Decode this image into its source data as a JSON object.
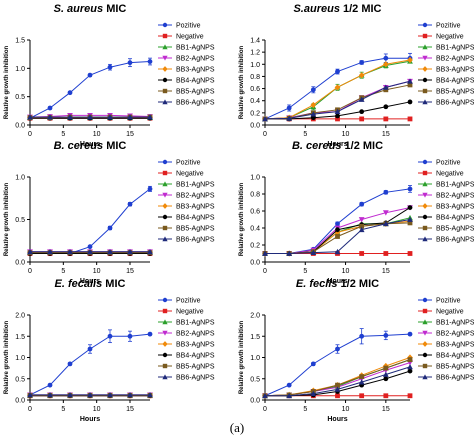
{
  "figure_caption": "(a)",
  "legend_entries": [
    "Pozitive",
    "Negative",
    "BB1-AgNPS",
    "BB2-AgNPS",
    "BB3-AgNPS",
    "BB4-AgNPS",
    "BB5-AgNPS",
    "BB6-AgNPS"
  ],
  "series_styles": [
    {
      "color": "#1f3fd0",
      "marker": "circle"
    },
    {
      "color": "#e02020",
      "marker": "square"
    },
    {
      "color": "#2ca02c",
      "marker": "triangle"
    },
    {
      "color": "#c02bd0",
      "marker": "triangle-down"
    },
    {
      "color": "#f08a0a",
      "marker": "diamond"
    },
    {
      "color": "#000000",
      "marker": "circle"
    },
    {
      "color": "#7a5a1e",
      "marker": "square"
    },
    {
      "color": "#1f2a7a",
      "marker": "triangle"
    }
  ],
  "chart_data": [
    {
      "type": "line",
      "title": "S. aureus MIC",
      "title_italic": "S. aureus",
      "title_rest": " MIC",
      "xlabel": "Hours",
      "ylabel": "Relative growth inhibition",
      "xlim": [
        0,
        18
      ],
      "ylim": [
        0,
        1.5
      ],
      "xticks": [
        0,
        5,
        10,
        15
      ],
      "yticks": [
        0.0,
        0.5,
        1.0,
        1.5
      ],
      "ytick_labels": [
        "0.0",
        "0.5",
        "1.0",
        "1.5"
      ],
      "x": [
        0,
        3,
        6,
        9,
        12,
        15,
        18
      ],
      "legend_names": [
        "Pozitive",
        "Negative",
        "BB1-AgNPS",
        "BB2-AgNPS",
        "BB3-AgNPS",
        "BB4-AgNPS",
        "BB5-AgNPS",
        "BB6-AgNPS"
      ],
      "series": [
        {
          "name": "Pozitive",
          "values": [
            0.12,
            0.3,
            0.57,
            0.88,
            1.02,
            1.1,
            1.12
          ],
          "error": [
            0,
            0.02,
            0.02,
            0.02,
            0.05,
            0.07,
            0.06
          ]
        },
        {
          "name": "Negative",
          "values": [
            0.12,
            0.12,
            0.12,
            0.12,
            0.12,
            0.12,
            0.12
          ]
        },
        {
          "name": "BB1-AgNPS",
          "values": [
            0.13,
            0.13,
            0.13,
            0.13,
            0.13,
            0.13,
            0.13
          ]
        },
        {
          "name": "BB2-AgNPS",
          "values": [
            0.14,
            0.15,
            0.17,
            0.17,
            0.17,
            0.16,
            0.15
          ]
        },
        {
          "name": "BB3-AgNPS",
          "values": [
            0.13,
            0.13,
            0.13,
            0.13,
            0.13,
            0.13,
            0.13
          ]
        },
        {
          "name": "BB4-AgNPS",
          "values": [
            0.12,
            0.12,
            0.12,
            0.12,
            0.12,
            0.12,
            0.12
          ]
        },
        {
          "name": "BB5-AgNPS",
          "values": [
            0.13,
            0.13,
            0.14,
            0.14,
            0.14,
            0.14,
            0.14
          ]
        },
        {
          "name": "BB6-AgNPS",
          "values": [
            0.14,
            0.14,
            0.14,
            0.14,
            0.14,
            0.14,
            0.14
          ]
        }
      ]
    },
    {
      "type": "line",
      "title": "S.aureus 1/2 MIC",
      "title_italic": "S.aureus",
      "title_rest": " 1/2 MIC",
      "xlabel": "Hours",
      "ylabel": "Relative growth inhibition",
      "xlim": [
        0,
        18
      ],
      "ylim": [
        0,
        1.4
      ],
      "xticks": [
        0,
        5,
        10,
        15
      ],
      "yticks": [
        0.0,
        0.2,
        0.4,
        0.6,
        0.8,
        1.0,
        1.2,
        1.4
      ],
      "ytick_labels": [
        "0.0",
        "0.2",
        "0.4",
        "0.6",
        "0.8",
        "1.0",
        "1.2",
        "1.4"
      ],
      "x": [
        0,
        3,
        6,
        9,
        12,
        15,
        18
      ],
      "legend_names": [
        "Pozitive",
        "Negative",
        "BB1-AgNPS",
        "BB2-AgNPS",
        "BB3-AgNPS",
        "BB4-AgNPS",
        "BB5-AgNPS",
        "BB6-AgNPS"
      ],
      "series": [
        {
          "name": "Pozitive",
          "values": [
            0.1,
            0.28,
            0.58,
            0.88,
            1.03,
            1.1,
            1.1
          ],
          "error": [
            0,
            0.05,
            0.05,
            0.04,
            0.03,
            0.07,
            0.08
          ]
        },
        {
          "name": "Negative",
          "values": [
            0.1,
            0.1,
            0.1,
            0.1,
            0.1,
            0.1,
            0.1
          ]
        },
        {
          "name": "BB1-AgNPS",
          "values": [
            0.1,
            0.12,
            0.3,
            0.62,
            0.82,
            0.98,
            1.05
          ],
          "error": [
            0,
            0.02,
            0.05,
            0.05,
            0.05,
            0.04,
            0.03
          ]
        },
        {
          "name": "BB2-AgNPS",
          "values": [
            0.1,
            0.12,
            0.2,
            0.22,
            0.45,
            0.62,
            0.72
          ]
        },
        {
          "name": "BB3-AgNPS",
          "values": [
            0.1,
            0.12,
            0.33,
            0.62,
            0.82,
            1.0,
            1.07
          ]
        },
        {
          "name": "BB4-AgNPS",
          "values": [
            0.1,
            0.1,
            0.12,
            0.15,
            0.22,
            0.3,
            0.38
          ]
        },
        {
          "name": "BB5-AgNPS",
          "values": [
            0.1,
            0.11,
            0.2,
            0.25,
            0.45,
            0.58,
            0.66
          ]
        },
        {
          "name": "BB6-AgNPS",
          "values": [
            0.1,
            0.11,
            0.18,
            0.22,
            0.42,
            0.62,
            0.72
          ]
        }
      ]
    },
    {
      "type": "line",
      "title": "B. cereus MIC",
      "title_italic": "B. cereus",
      "title_rest": " MIC",
      "xlabel": "Hours",
      "ylabel": "Relative growth inhibition",
      "xlim": [
        0,
        18
      ],
      "ylim": [
        0,
        1.0
      ],
      "xticks": [
        0,
        5,
        10,
        15
      ],
      "yticks": [
        0.0,
        0.5,
        1.0
      ],
      "ytick_labels": [
        "0.0",
        "0.5",
        "1.0"
      ],
      "x": [
        0,
        3,
        6,
        9,
        12,
        15,
        18
      ],
      "legend_names": [
        "Pozitive",
        "Negative",
        "BB1-AgNPS",
        "BB2-AgNPS",
        "BB3-AgNPS",
        "BB4-AgNPS",
        "BB5-AgNPS",
        "BB6-AgNPS"
      ],
      "series": [
        {
          "name": "Pozitive",
          "values": [
            0.1,
            0.1,
            0.1,
            0.18,
            0.4,
            0.68,
            0.86
          ],
          "error": [
            0,
            0,
            0,
            0.01,
            0.02,
            0.02,
            0.03
          ]
        },
        {
          "name": "Negative",
          "values": [
            0.1,
            0.1,
            0.1,
            0.1,
            0.1,
            0.1,
            0.1
          ]
        },
        {
          "name": "BB1-AgNPS",
          "values": [
            0.11,
            0.11,
            0.11,
            0.11,
            0.11,
            0.11,
            0.11
          ]
        },
        {
          "name": "BB2-AgNPS",
          "values": [
            0.12,
            0.12,
            0.12,
            0.12,
            0.12,
            0.12,
            0.12
          ]
        },
        {
          "name": "BB3-AgNPS",
          "values": [
            0.11,
            0.11,
            0.11,
            0.11,
            0.11,
            0.11,
            0.11
          ]
        },
        {
          "name": "BB4-AgNPS",
          "values": [
            0.1,
            0.1,
            0.1,
            0.1,
            0.1,
            0.1,
            0.1
          ]
        },
        {
          "name": "BB5-AgNPS",
          "values": [
            0.11,
            0.11,
            0.11,
            0.11,
            0.11,
            0.11,
            0.11
          ]
        },
        {
          "name": "BB6-AgNPS",
          "values": [
            0.12,
            0.12,
            0.12,
            0.12,
            0.12,
            0.12,
            0.12
          ]
        }
      ]
    },
    {
      "type": "line",
      "title": "B. cereus 1/2 MIC",
      "title_italic": "B. cereus",
      "title_rest": " 1/2 MIC",
      "xlabel": "Hours",
      "ylabel": "Relative growth inhibition",
      "xlim": [
        0,
        18
      ],
      "ylim": [
        0,
        1.0
      ],
      "xticks": [
        0,
        5,
        10,
        15
      ],
      "yticks": [
        0.0,
        0.2,
        0.4,
        0.6,
        0.8,
        1.0
      ],
      "ytick_labels": [
        "0.0",
        "0.2",
        "0.4",
        "0.6",
        "0.8",
        "1.0"
      ],
      "x": [
        0,
        3,
        6,
        9,
        12,
        15,
        18
      ],
      "legend_names": [
        "Pozitive",
        "Negative",
        "BB1-AgNPS",
        "BB2-AgNPS",
        "BB3-AgNPS",
        "BB4-AgNPS",
        "BB5-AgNPS",
        "BB6-AgNPS"
      ],
      "series": [
        {
          "name": "Pozitive",
          "values": [
            0.1,
            0.1,
            0.15,
            0.45,
            0.68,
            0.82,
            0.86
          ],
          "error": [
            0,
            0,
            0.01,
            0.02,
            0.02,
            0.02,
            0.04
          ]
        },
        {
          "name": "Negative",
          "values": [
            0.1,
            0.1,
            0.1,
            0.1,
            0.1,
            0.1,
            0.1
          ]
        },
        {
          "name": "BB1-AgNPS",
          "values": [
            0.1,
            0.1,
            0.12,
            0.35,
            0.45,
            0.45,
            0.52
          ]
        },
        {
          "name": "BB2-AgNPS",
          "values": [
            0.1,
            0.1,
            0.14,
            0.4,
            0.5,
            0.58,
            0.64
          ]
        },
        {
          "name": "BB3-AgNPS",
          "values": [
            0.1,
            0.1,
            0.12,
            0.35,
            0.42,
            0.45,
            0.48
          ]
        },
        {
          "name": "BB4-AgNPS",
          "values": [
            0.1,
            0.1,
            0.12,
            0.38,
            0.44,
            0.46,
            0.64
          ]
        },
        {
          "name": "BB5-AgNPS",
          "values": [
            0.1,
            0.1,
            0.12,
            0.3,
            0.42,
            0.45,
            0.46
          ]
        },
        {
          "name": "BB6-AgNPS",
          "values": [
            0.1,
            0.1,
            0.11,
            0.12,
            0.38,
            0.45,
            0.5
          ]
        }
      ]
    },
    {
      "type": "line",
      "title": "E. fecalis MIC",
      "title_italic": "E. fecalis",
      "title_rest": " MIC",
      "xlabel": "Hours",
      "ylabel": "Relative growth inhibition",
      "xlim": [
        0,
        18
      ],
      "ylim": [
        0,
        2.0
      ],
      "xticks": [
        0,
        5,
        10,
        15
      ],
      "yticks": [
        0.0,
        0.5,
        1.0,
        1.5,
        2.0
      ],
      "ytick_labels": [
        "0.0",
        "0.5",
        "1.0",
        "1.5",
        "2.0"
      ],
      "x": [
        0,
        3,
        6,
        9,
        12,
        15,
        18
      ],
      "legend_names": [
        "Pozitive",
        "Negative",
        "BB1-AgNPS",
        "BB2-AgNPS",
        "BB3-AgNPS",
        "BB4-AgNPS",
        "BB5-AgNPS",
        "BB6-AgNPS"
      ],
      "series": [
        {
          "name": "Pozitive",
          "values": [
            0.12,
            0.35,
            0.85,
            1.2,
            1.5,
            1.5,
            1.55
          ],
          "error": [
            0,
            0.01,
            0.02,
            0.1,
            0.15,
            0.12,
            0.02
          ]
        },
        {
          "name": "Negative",
          "values": [
            0.1,
            0.1,
            0.1,
            0.1,
            0.1,
            0.1,
            0.1
          ]
        },
        {
          "name": "BB1-AgNPS",
          "values": [
            0.11,
            0.11,
            0.11,
            0.11,
            0.11,
            0.11,
            0.11
          ]
        },
        {
          "name": "BB2-AgNPS",
          "values": [
            0.12,
            0.12,
            0.12,
            0.12,
            0.12,
            0.12,
            0.12
          ]
        },
        {
          "name": "BB3-AgNPS",
          "values": [
            0.11,
            0.11,
            0.11,
            0.11,
            0.11,
            0.11,
            0.11
          ]
        },
        {
          "name": "BB4-AgNPS",
          "values": [
            0.1,
            0.1,
            0.1,
            0.1,
            0.1,
            0.1,
            0.1
          ]
        },
        {
          "name": "BB5-AgNPS",
          "values": [
            0.11,
            0.11,
            0.11,
            0.11,
            0.11,
            0.11,
            0.11
          ]
        },
        {
          "name": "BB6-AgNPS",
          "values": [
            0.12,
            0.12,
            0.12,
            0.12,
            0.12,
            0.12,
            0.12
          ]
        }
      ]
    },
    {
      "type": "line",
      "title": "E. feclis 1/2 MIC",
      "title_italic": "E. feclis",
      "title_rest": " 1/2 MIC",
      "xlabel": "Hours",
      "ylabel": "Relative growth inhibition",
      "xlim": [
        0,
        18
      ],
      "ylim": [
        0,
        2.0
      ],
      "xticks": [
        0,
        5,
        10,
        15
      ],
      "yticks": [
        0.0,
        0.5,
        1.0,
        1.5,
        2.0
      ],
      "ytick_labels": [
        "0.0",
        "0.5",
        "1.0",
        "1.5",
        "2.0"
      ],
      "x": [
        0,
        3,
        6,
        9,
        12,
        15,
        18
      ],
      "legend_names": [
        "Pozitive",
        "Negative",
        "BB1-AgNPS",
        "BB2-AgNPS",
        "BB3-AgNPS",
        "BB4-AgNPS",
        "BB5-AgNPS",
        "BB6-AgNPS"
      ],
      "series": [
        {
          "name": "Pozitive",
          "values": [
            0.1,
            0.35,
            0.85,
            1.2,
            1.5,
            1.52,
            1.55
          ],
          "error": [
            0,
            0.01,
            0.02,
            0.1,
            0.18,
            0.1,
            0.02
          ]
        },
        {
          "name": "Negative",
          "values": [
            0.1,
            0.1,
            0.1,
            0.1,
            0.1,
            0.1,
            0.1
          ]
        },
        {
          "name": "BB1-AgNPS",
          "values": [
            0.1,
            0.12,
            0.2,
            0.32,
            0.55,
            0.75,
            0.95
          ]
        },
        {
          "name": "BB2-AgNPS",
          "values": [
            0.1,
            0.12,
            0.2,
            0.3,
            0.5,
            0.7,
            0.88
          ]
        },
        {
          "name": "BB3-AgNPS",
          "values": [
            0.1,
            0.12,
            0.22,
            0.35,
            0.58,
            0.8,
            1.0
          ]
        },
        {
          "name": "BB4-AgNPS",
          "values": [
            0.1,
            0.1,
            0.12,
            0.2,
            0.35,
            0.5,
            0.68
          ]
        },
        {
          "name": "BB5-AgNPS",
          "values": [
            0.1,
            0.12,
            0.2,
            0.35,
            0.55,
            0.75,
            0.95
          ]
        },
        {
          "name": "BB6-AgNPS",
          "values": [
            0.1,
            0.1,
            0.15,
            0.25,
            0.42,
            0.6,
            0.78
          ]
        }
      ]
    }
  ]
}
